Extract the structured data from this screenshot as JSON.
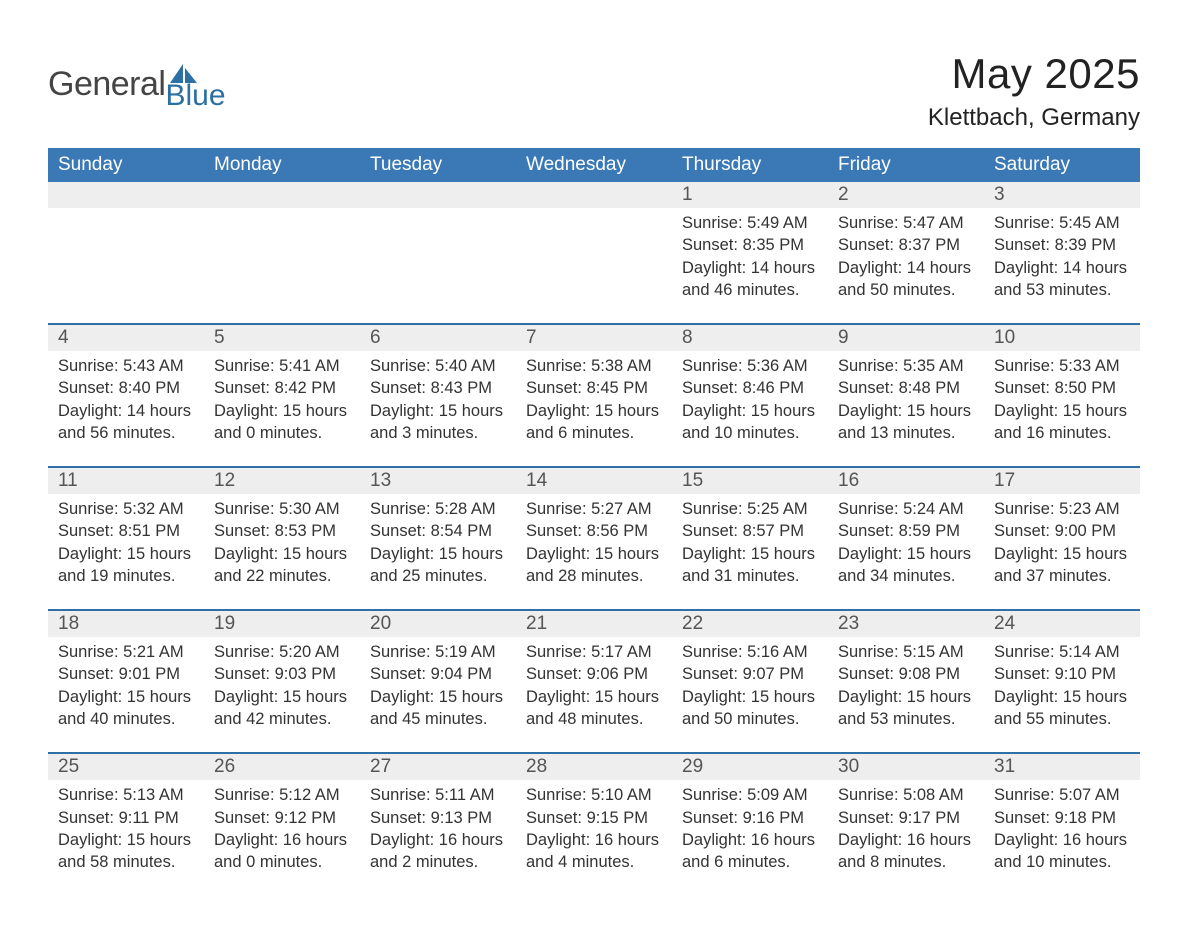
{
  "logo": {
    "general": "General",
    "blue": "Blue"
  },
  "title": "May 2025",
  "location": "Klettbach, Germany",
  "colors": {
    "header_bg": "#3a78b6",
    "header_text": "#ffffff",
    "row_separator": "#2f6fa8",
    "daynum_band": "#eeeeee",
    "logo_blue": "#2b6fa3",
    "text_dark": "#333333"
  },
  "weekday_labels": [
    "Sunday",
    "Monday",
    "Tuesday",
    "Wednesday",
    "Thursday",
    "Friday",
    "Saturday"
  ],
  "labels": {
    "sunrise": "Sunrise:",
    "sunset": "Sunset:",
    "daylight": "Daylight:"
  },
  "weeks": [
    [
      null,
      null,
      null,
      null,
      {
        "day": "1",
        "sunrise": "5:49 AM",
        "sunset": "8:35 PM",
        "daylight": "14 hours and 46 minutes."
      },
      {
        "day": "2",
        "sunrise": "5:47 AM",
        "sunset": "8:37 PM",
        "daylight": "14 hours and 50 minutes."
      },
      {
        "day": "3",
        "sunrise": "5:45 AM",
        "sunset": "8:39 PM",
        "daylight": "14 hours and 53 minutes."
      }
    ],
    [
      {
        "day": "4",
        "sunrise": "5:43 AM",
        "sunset": "8:40 PM",
        "daylight": "14 hours and 56 minutes."
      },
      {
        "day": "5",
        "sunrise": "5:41 AM",
        "sunset": "8:42 PM",
        "daylight": "15 hours and 0 minutes."
      },
      {
        "day": "6",
        "sunrise": "5:40 AM",
        "sunset": "8:43 PM",
        "daylight": "15 hours and 3 minutes."
      },
      {
        "day": "7",
        "sunrise": "5:38 AM",
        "sunset": "8:45 PM",
        "daylight": "15 hours and 6 minutes."
      },
      {
        "day": "8",
        "sunrise": "5:36 AM",
        "sunset": "8:46 PM",
        "daylight": "15 hours and 10 minutes."
      },
      {
        "day": "9",
        "sunrise": "5:35 AM",
        "sunset": "8:48 PM",
        "daylight": "15 hours and 13 minutes."
      },
      {
        "day": "10",
        "sunrise": "5:33 AM",
        "sunset": "8:50 PM",
        "daylight": "15 hours and 16 minutes."
      }
    ],
    [
      {
        "day": "11",
        "sunrise": "5:32 AM",
        "sunset": "8:51 PM",
        "daylight": "15 hours and 19 minutes."
      },
      {
        "day": "12",
        "sunrise": "5:30 AM",
        "sunset": "8:53 PM",
        "daylight": "15 hours and 22 minutes."
      },
      {
        "day": "13",
        "sunrise": "5:28 AM",
        "sunset": "8:54 PM",
        "daylight": "15 hours and 25 minutes."
      },
      {
        "day": "14",
        "sunrise": "5:27 AM",
        "sunset": "8:56 PM",
        "daylight": "15 hours and 28 minutes."
      },
      {
        "day": "15",
        "sunrise": "5:25 AM",
        "sunset": "8:57 PM",
        "daylight": "15 hours and 31 minutes."
      },
      {
        "day": "16",
        "sunrise": "5:24 AM",
        "sunset": "8:59 PM",
        "daylight": "15 hours and 34 minutes."
      },
      {
        "day": "17",
        "sunrise": "5:23 AM",
        "sunset": "9:00 PM",
        "daylight": "15 hours and 37 minutes."
      }
    ],
    [
      {
        "day": "18",
        "sunrise": "5:21 AM",
        "sunset": "9:01 PM",
        "daylight": "15 hours and 40 minutes."
      },
      {
        "day": "19",
        "sunrise": "5:20 AM",
        "sunset": "9:03 PM",
        "daylight": "15 hours and 42 minutes."
      },
      {
        "day": "20",
        "sunrise": "5:19 AM",
        "sunset": "9:04 PM",
        "daylight": "15 hours and 45 minutes."
      },
      {
        "day": "21",
        "sunrise": "5:17 AM",
        "sunset": "9:06 PM",
        "daylight": "15 hours and 48 minutes."
      },
      {
        "day": "22",
        "sunrise": "5:16 AM",
        "sunset": "9:07 PM",
        "daylight": "15 hours and 50 minutes."
      },
      {
        "day": "23",
        "sunrise": "5:15 AM",
        "sunset": "9:08 PM",
        "daylight": "15 hours and 53 minutes."
      },
      {
        "day": "24",
        "sunrise": "5:14 AM",
        "sunset": "9:10 PM",
        "daylight": "15 hours and 55 minutes."
      }
    ],
    [
      {
        "day": "25",
        "sunrise": "5:13 AM",
        "sunset": "9:11 PM",
        "daylight": "15 hours and 58 minutes."
      },
      {
        "day": "26",
        "sunrise": "5:12 AM",
        "sunset": "9:12 PM",
        "daylight": "16 hours and 0 minutes."
      },
      {
        "day": "27",
        "sunrise": "5:11 AM",
        "sunset": "9:13 PM",
        "daylight": "16 hours and 2 minutes."
      },
      {
        "day": "28",
        "sunrise": "5:10 AM",
        "sunset": "9:15 PM",
        "daylight": "16 hours and 4 minutes."
      },
      {
        "day": "29",
        "sunrise": "5:09 AM",
        "sunset": "9:16 PM",
        "daylight": "16 hours and 6 minutes."
      },
      {
        "day": "30",
        "sunrise": "5:08 AM",
        "sunset": "9:17 PM",
        "daylight": "16 hours and 8 minutes."
      },
      {
        "day": "31",
        "sunrise": "5:07 AM",
        "sunset": "9:18 PM",
        "daylight": "16 hours and 10 minutes."
      }
    ]
  ]
}
